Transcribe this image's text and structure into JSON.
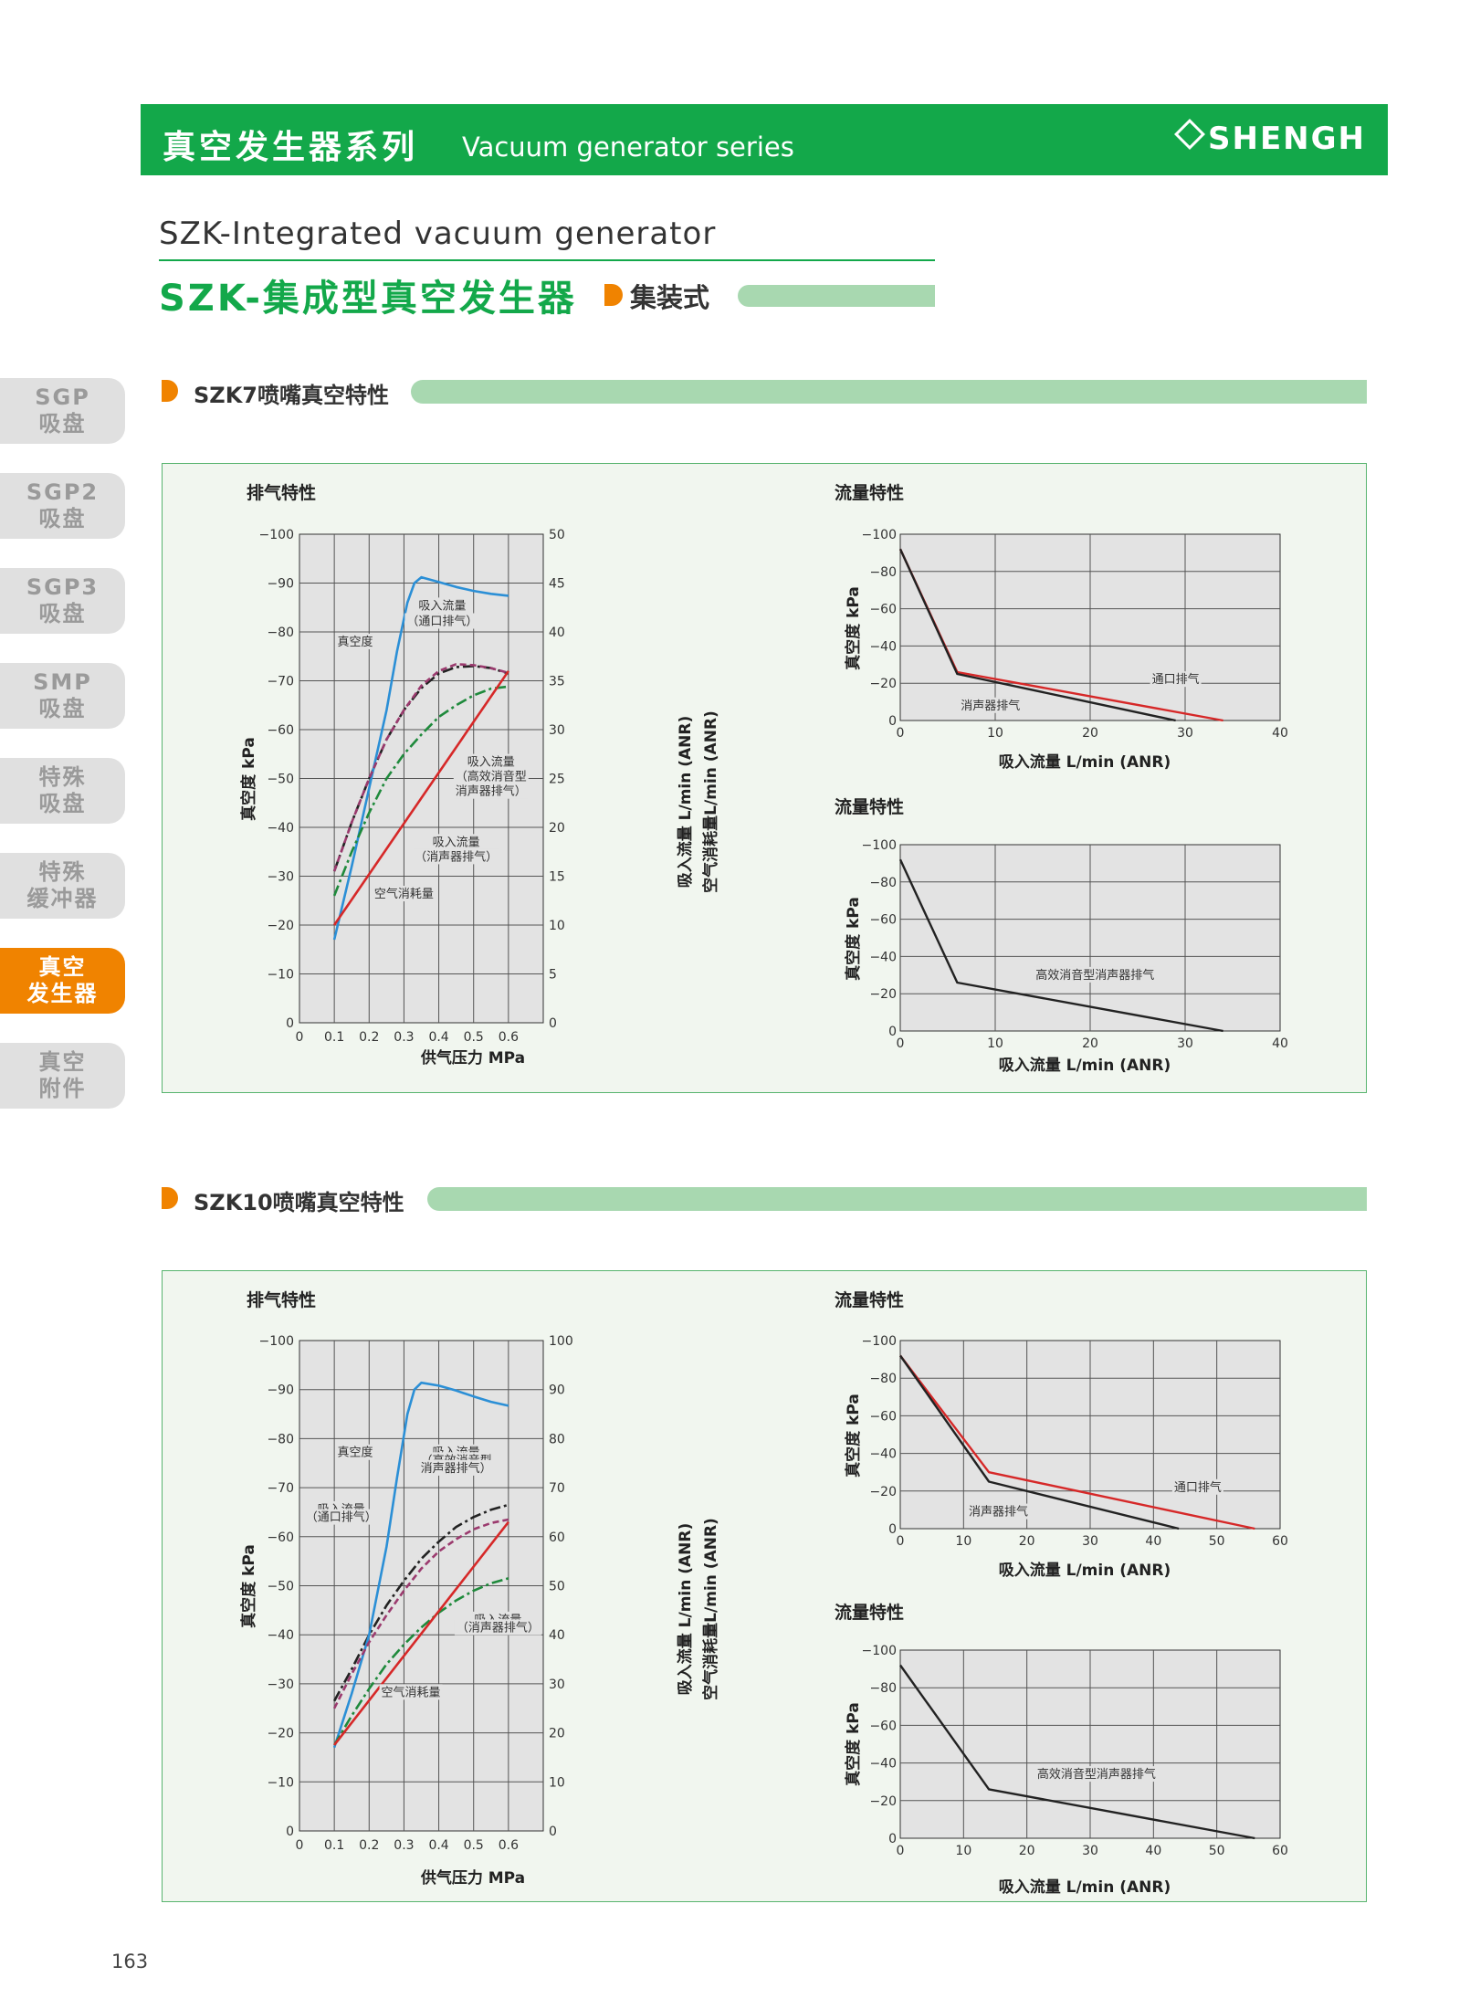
{
  "banner": {
    "title_cn": "真空发生器系列",
    "title_en": "Vacuum generator series",
    "brand": "SHENGH",
    "color": "#13a84a"
  },
  "product": {
    "title_en": "SZK-Integrated vacuum generator",
    "title_cn": "SZK-集成型真空发生器",
    "type_label": "集装式"
  },
  "sidebar": {
    "items": [
      {
        "line1": "SGP",
        "line2": "吸盘",
        "active": false
      },
      {
        "line1": "SGP2",
        "line2": "吸盘",
        "active": false
      },
      {
        "line1": "SGP3",
        "line2": "吸盘",
        "active": false
      },
      {
        "line1": "SMP",
        "line2": "吸盘",
        "active": false
      },
      {
        "line1": "特殊",
        "line2": "吸盘",
        "active": false
      },
      {
        "line1": "特殊",
        "line2": "缓冲器",
        "active": false
      },
      {
        "line1": "真空",
        "line2": "发生器",
        "active": true
      },
      {
        "line1": "真空",
        "line2": "附件",
        "active": false
      }
    ]
  },
  "sections": [
    {
      "title": "SZK7喷嘴真空特性"
    },
    {
      "title": "SZK10喷嘴真空特性"
    }
  ],
  "page_number": "163",
  "chart_data": [
    {
      "type": "line",
      "section": "SZK7喷嘴真空特性",
      "title": "排气特性",
      "xlabel": "供气压力 MPa",
      "ylabel_left": "真空度 kPa",
      "ylabel_right": [
        "吸入流量 L/min (ANR)",
        "空气消耗量L/min (ANR)"
      ],
      "xlim": [
        0,
        0.7
      ],
      "x_ticks": [
        "0",
        "0.1",
        "0.2",
        "0.3",
        "0.4",
        "0.5",
        "0.6"
      ],
      "ylim_left": [
        0,
        -100
      ],
      "y_ticks_left": [
        "0",
        "−10",
        "−20",
        "−30",
        "−40",
        "−50",
        "−60",
        "−70",
        "−80",
        "−90",
        "−100"
      ],
      "ylim_right": [
        0,
        50
      ],
      "y_ticks_right": [
        "0",
        "5",
        "10",
        "15",
        "20",
        "25",
        "30",
        "35",
        "40",
        "45",
        "50"
      ],
      "grid": true,
      "series": [
        {
          "name": "真空度",
          "axis": "left",
          "color": "#222222",
          "dash": "dashdot",
          "x": [
            0.1,
            0.15,
            0.2,
            0.25,
            0.3,
            0.35,
            0.4,
            0.45,
            0.5,
            0.55,
            0.6
          ],
          "y": [
            -31,
            -41,
            -50,
            -58,
            -64,
            -68.5,
            -71.5,
            -72.8,
            -73,
            -72.6,
            -71.5
          ]
        },
        {
          "name": "吸入流量（通口排气）",
          "axis": "right",
          "color": "#2b8fd6",
          "dash": "solid",
          "x": [
            0.1,
            0.15,
            0.2,
            0.25,
            0.28,
            0.31,
            0.33,
            0.35,
            0.4,
            0.45,
            0.5,
            0.55,
            0.6
          ],
          "y": [
            8.5,
            16,
            24,
            32,
            38,
            43,
            45,
            45.6,
            45.1,
            44.6,
            44.2,
            43.9,
            43.7
          ]
        },
        {
          "name": "吸入流量（高效消音型消声器排气）",
          "axis": "right",
          "color": "#9b3a6e",
          "dash": "dashed",
          "x": [
            0.1,
            0.15,
            0.2,
            0.25,
            0.3,
            0.35,
            0.4,
            0.45,
            0.5,
            0.55,
            0.6
          ],
          "y": [
            15.5,
            20.5,
            25,
            29,
            32,
            34.5,
            36,
            36.7,
            36.6,
            36.3,
            35.8
          ]
        },
        {
          "name": "吸入流量（消声器排气）",
          "axis": "right",
          "color": "#1f8a3c",
          "dash": "dashdot",
          "x": [
            0.1,
            0.15,
            0.2,
            0.25,
            0.3,
            0.35,
            0.4,
            0.45,
            0.5,
            0.55,
            0.6
          ],
          "y": [
            13,
            17.5,
            21.5,
            25,
            27.5,
            29.5,
            31.3,
            32.5,
            33.5,
            34.2,
            34.4
          ]
        },
        {
          "name": "空气消耗量",
          "axis": "right",
          "color": "#d62828",
          "dash": "solid",
          "x": [
            0.1,
            0.6
          ],
          "y": [
            10,
            36
          ]
        }
      ],
      "annotations": [
        {
          "text": "吸入流量",
          "x": 0.41,
          "y": 42.3
        },
        {
          "text": "（通口排气）",
          "x": 0.41,
          "y": 40.7
        },
        {
          "text": "真空度",
          "x": 0.16,
          "y": 38.6
        },
        {
          "text": "吸入流量",
          "x": 0.55,
          "y": 26.3
        },
        {
          "text": "（高效消音型",
          "x": 0.55,
          "y": 24.8
        },
        {
          "text": "消声器排气）",
          "x": 0.55,
          "y": 23.3
        },
        {
          "text": "吸入流量",
          "x": 0.45,
          "y": 18.1
        },
        {
          "text": "（消声器排气）",
          "x": 0.45,
          "y": 16.6
        },
        {
          "text": "空气消耗量",
          "x": 0.3,
          "y": 12.8
        }
      ]
    },
    {
      "type": "line",
      "section": "SZK7喷嘴真空特性",
      "title": "流量特性",
      "xlabel": "吸入流量 L/min (ANR)",
      "ylabel": "真空度 kPa",
      "xlim": [
        0,
        40
      ],
      "x_ticks": [
        "0",
        "10",
        "20",
        "30",
        "40"
      ],
      "ylim": [
        0,
        -100
      ],
      "y_ticks": [
        "0",
        "−20",
        "−40",
        "−60",
        "−80",
        "−100"
      ],
      "grid": true,
      "series": [
        {
          "name": "通口排气",
          "color": "#d62828",
          "x": [
            0,
            6,
            34
          ],
          "y": [
            -92,
            -26,
            0
          ]
        },
        {
          "name": "消声器排气",
          "color": "#222222",
          "x": [
            0,
            6,
            29
          ],
          "y": [
            -92,
            -25,
            0
          ]
        }
      ],
      "annotations": [
        {
          "text": "通口排气",
          "x": 29,
          "y": -20
        },
        {
          "text": "消声器排气",
          "x": 9.5,
          "y": -6
        }
      ]
    },
    {
      "type": "line",
      "section": "SZK7喷嘴真空特性",
      "title": "流量特性",
      "xlabel": "吸入流量 L/min (ANR)",
      "ylabel": "真空度 kPa",
      "xlim": [
        0,
        40
      ],
      "x_ticks": [
        "0",
        "10",
        "20",
        "30",
        "40"
      ],
      "ylim": [
        0,
        -100
      ],
      "y_ticks": [
        "0",
        "−20",
        "−40",
        "−60",
        "−80",
        "−100"
      ],
      "grid": true,
      "series": [
        {
          "name": "高效消音型消声器排气",
          "color": "#222222",
          "x": [
            0,
            6,
            34
          ],
          "y": [
            -92,
            -26,
            0
          ]
        }
      ],
      "annotations": [
        {
          "text": "高效消音型消声器排气",
          "x": 20.5,
          "y": -28
        }
      ]
    },
    {
      "type": "line",
      "section": "SZK10喷嘴真空特性",
      "title": "排气特性",
      "xlabel": "供气压力 MPa",
      "ylabel_left": "真空度 kPa",
      "ylabel_right": [
        "吸入流量 L/min (ANR)",
        "空气消耗量L/min (ANR)"
      ],
      "xlim": [
        0,
        0.7
      ],
      "x_ticks": [
        "0",
        "0.1",
        "0.2",
        "0.3",
        "0.4",
        "0.5",
        "0.6"
      ],
      "ylim_left": [
        0,
        -100
      ],
      "y_ticks_left": [
        "0",
        "−10",
        "−20",
        "−30",
        "−40",
        "−50",
        "−60",
        "−70",
        "−80",
        "−90",
        "−100"
      ],
      "ylim_right": [
        0,
        100
      ],
      "y_ticks_right": [
        "0",
        "10",
        "20",
        "30",
        "40",
        "50",
        "60",
        "70",
        "80",
        "90",
        "100"
      ],
      "grid": true,
      "series": [
        {
          "name": "真空度",
          "axis": "left",
          "color": "#222222",
          "dash": "dashdot",
          "x": [
            0.1,
            0.15,
            0.2,
            0.25,
            0.3,
            0.35,
            0.4,
            0.45,
            0.5,
            0.55,
            0.6
          ],
          "y": [
            -26.5,
            -33,
            -40,
            -46,
            -51,
            -55.5,
            -59,
            -62,
            -64,
            -65.5,
            -66.5
          ]
        },
        {
          "name": "吸入流量（通口排气）",
          "axis": "right",
          "color": "#2b8fd6",
          "dash": "solid",
          "x": [
            0.1,
            0.15,
            0.2,
            0.25,
            0.28,
            0.31,
            0.33,
            0.35,
            0.4,
            0.45,
            0.5,
            0.55,
            0.6
          ],
          "y": [
            17,
            28,
            40,
            58,
            72,
            85,
            90,
            91.4,
            90.8,
            89.8,
            88.6,
            87.5,
            86.7
          ]
        },
        {
          "name": "吸入流量（高效消音型消声器排气）",
          "axis": "right",
          "color": "#9b3a6e",
          "dash": "dashed",
          "x": [
            0.1,
            0.15,
            0.2,
            0.25,
            0.3,
            0.35,
            0.4,
            0.45,
            0.5,
            0.55,
            0.6
          ],
          "y": [
            25,
            32,
            38.5,
            44,
            49,
            53.5,
            57,
            59.5,
            61.5,
            62.8,
            63.5
          ]
        },
        {
          "name": "吸入流量（消声器排气）",
          "axis": "right",
          "color": "#1f8a3c",
          "dash": "dashdot",
          "x": [
            0.1,
            0.15,
            0.2,
            0.25,
            0.3,
            0.35,
            0.4,
            0.45,
            0.5,
            0.55,
            0.6
          ],
          "y": [
            17.5,
            23.5,
            29,
            34,
            38,
            41.5,
            44.5,
            47,
            49,
            50.5,
            51.5
          ]
        },
        {
          "name": "空气消耗量",
          "axis": "right",
          "color": "#d62828",
          "dash": "solid",
          "x": [
            0.1,
            0.6
          ],
          "y": [
            17.5,
            63
          ]
        }
      ],
      "annotations": [
        {
          "text": "真空度",
          "x": 0.16,
          "y": 76.4
        },
        {
          "text": "吸入流量",
          "x": 0.45,
          "y": 76.4
        },
        {
          "text": "（高效消音型",
          "x": 0.45,
          "y": 74.8
        },
        {
          "text": "消声器排气）",
          "x": 0.45,
          "y": 73.2
        },
        {
          "text": "吸入流量",
          "x": 0.12,
          "y": 64.8
        },
        {
          "text": "（通口排气）",
          "x": 0.12,
          "y": 63.2
        },
        {
          "text": "吸入流量",
          "x": 0.57,
          "y": 42.3
        },
        {
          "text": "（消声器排气）",
          "x": 0.57,
          "y": 40.7
        },
        {
          "text": "空气消耗量",
          "x": 0.32,
          "y": 27.5
        }
      ]
    },
    {
      "type": "line",
      "section": "SZK10喷嘴真空特性",
      "title": "流量特性",
      "xlabel": "吸入流量 L/min (ANR)",
      "ylabel": "真空度 kPa",
      "xlim": [
        0,
        60
      ],
      "x_ticks": [
        "0",
        "10",
        "20",
        "30",
        "40",
        "50",
        "60"
      ],
      "ylim": [
        0,
        -100
      ],
      "y_ticks": [
        "0",
        "−20",
        "−40",
        "−60",
        "−80",
        "−100"
      ],
      "grid": true,
      "series": [
        {
          "name": "通口排气",
          "color": "#d62828",
          "x": [
            0,
            14,
            56
          ],
          "y": [
            -92,
            -30,
            0
          ]
        },
        {
          "name": "消声器排气",
          "color": "#222222",
          "x": [
            0,
            14,
            44
          ],
          "y": [
            -92,
            -25,
            0
          ]
        }
      ],
      "annotations": [
        {
          "text": "通口排气",
          "x": 47,
          "y": -20
        },
        {
          "text": "消声器排气",
          "x": 15.5,
          "y": -7
        }
      ]
    },
    {
      "type": "line",
      "section": "SZK10喷嘴真空特性",
      "title": "流量特性",
      "xlabel": "吸入流量 L/min (ANR)",
      "ylabel": "真空度 kPa",
      "xlim": [
        0,
        60
      ],
      "x_ticks": [
        "0",
        "10",
        "20",
        "30",
        "40",
        "50",
        "60"
      ],
      "ylim": [
        0,
        -100
      ],
      "y_ticks": [
        "0",
        "−20",
        "−40",
        "−60",
        "−80",
        "−100"
      ],
      "grid": true,
      "series": [
        {
          "name": "高效消音型消声器排气",
          "color": "#222222",
          "x": [
            0,
            14,
            56
          ],
          "y": [
            -92,
            -26,
            0
          ]
        }
      ],
      "annotations": [
        {
          "text": "高效消音型消声器排气",
          "x": 31,
          "y": -32
        }
      ]
    }
  ]
}
